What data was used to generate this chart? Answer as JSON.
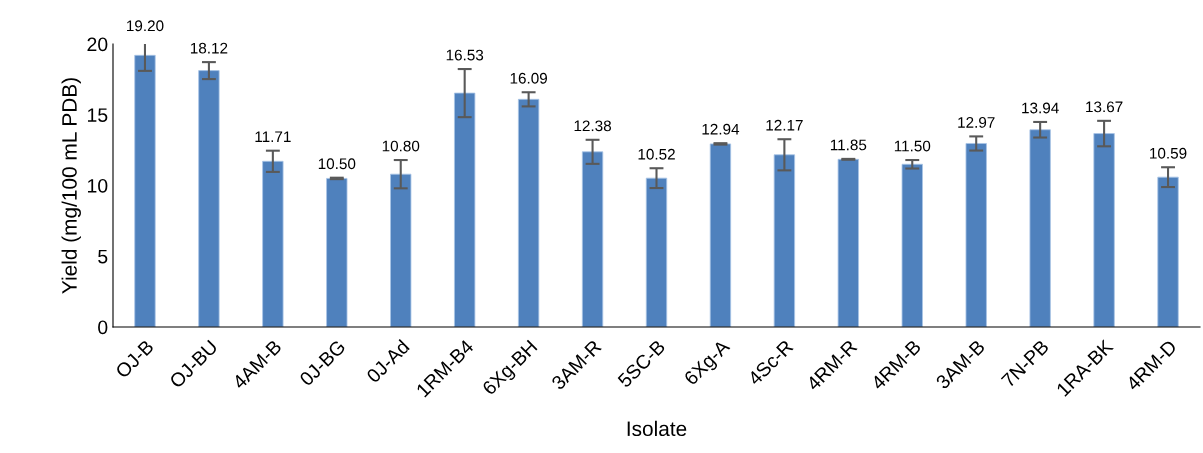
{
  "chart_data": {
    "type": "bar",
    "xlabel": "Isolate",
    "ylabel": "Yield (mg/100 mL PDB)",
    "categories": [
      "OJ-B",
      "OJ-BU",
      "4AM-B",
      "0J-BG",
      "0J-Ad",
      "1RM-B4",
      "6Xg-BH",
      "3AM-R",
      "5SC-B",
      "6Xg-A",
      "4Sc-R",
      "4RM-R",
      "4RM-B",
      "3AM-B",
      "7N-PB",
      "1RA-BK",
      "4RM-D"
    ],
    "values": [
      19.2,
      18.12,
      11.71,
      10.5,
      10.8,
      16.53,
      16.09,
      12.38,
      10.52,
      12.94,
      12.17,
      11.85,
      11.5,
      12.97,
      13.94,
      13.67,
      10.59
    ],
    "errors": [
      1.1,
      0.6,
      0.75,
      0.05,
      1.0,
      1.7,
      0.5,
      0.85,
      0.7,
      0.05,
      1.1,
      0.03,
      0.3,
      0.5,
      0.55,
      0.9,
      0.7
    ],
    "color": "#4f81bd",
    "ylim": [
      0,
      20
    ],
    "yticks": [
      0,
      5,
      10,
      15,
      20
    ],
    "grid": false,
    "value_labels": [
      "19.20",
      "18.12",
      "11.71",
      "10.50",
      "10.80",
      "16.53",
      "16.09",
      "12.38",
      "10.52",
      "12.94",
      "12.17",
      "11.85",
      "11.50",
      "12.97",
      "13.94",
      "13.67",
      "10.59"
    ]
  }
}
